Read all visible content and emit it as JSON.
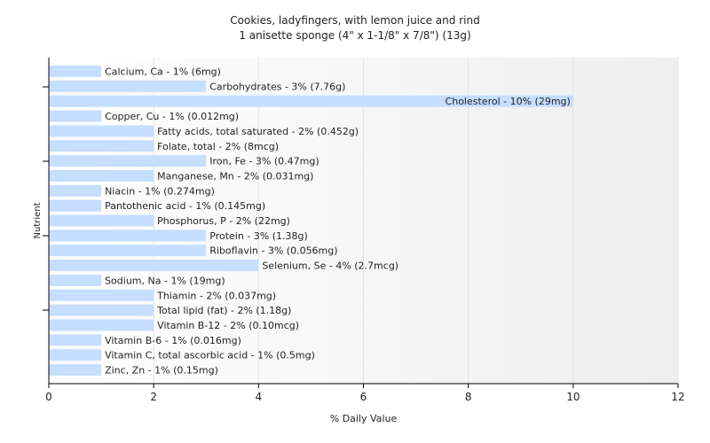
{
  "chart_data": {
    "type": "bar",
    "orientation": "horizontal",
    "title": "Cookies, ladyfingers, with lemon juice and rind",
    "subtitle": "1 anisette sponge (4\" x 1-1/8\" x 7/8\") (13g)",
    "xlabel": "% Daily Value",
    "ylabel": "Nutrient",
    "xlim": [
      0,
      12
    ],
    "xticks": [
      0,
      2,
      4,
      6,
      8,
      10,
      12
    ],
    "bar_color": "#c6deff",
    "grid": false,
    "categories": [
      "Calcium, Ca",
      "Carbohydrates",
      "Cholesterol",
      "Copper, Cu",
      "Fatty acids, total saturated",
      "Folate, total",
      "Iron, Fe",
      "Manganese, Mn",
      "Niacin",
      "Pantothenic acid",
      "Phosphorus, P",
      "Protein",
      "Riboflavin",
      "Selenium, Se",
      "Sodium, Na",
      "Thiamin",
      "Total lipid (fat)",
      "Vitamin B-12",
      "Vitamin B-6",
      "Vitamin C, total ascorbic acid",
      "Zinc, Zn"
    ],
    "values": [
      1,
      3,
      10,
      1,
      2,
      2,
      3,
      2,
      1,
      1,
      2,
      3,
      3,
      4,
      1,
      2,
      2,
      2,
      1,
      1,
      1
    ],
    "labels": [
      "Calcium, Ca - 1% (6mg)",
      "Carbohydrates - 3% (7.76g)",
      "Cholesterol - 10% (29mg)",
      "Copper, Cu - 1% (0.012mg)",
      "Fatty acids, total saturated - 2% (0.452g)",
      "Folate, total - 2% (8mcg)",
      "Iron, Fe - 3% (0.47mg)",
      "Manganese, Mn - 2% (0.031mg)",
      "Niacin - 1% (0.274mg)",
      "Pantothenic acid - 1% (0.145mg)",
      "Phosphorus, P - 2% (22mg)",
      "Protein - 3% (1.38g)",
      "Riboflavin - 3% (0.056mg)",
      "Selenium, Se - 4% (2.7mcg)",
      "Sodium, Na - 1% (19mg)",
      "Thiamin - 2% (0.037mg)",
      "Total lipid (fat) - 2% (1.18g)",
      "Vitamin B-12 - 2% (0.10mcg)",
      "Vitamin B-6 - 1% (0.016mg)",
      "Vitamin C, total ascorbic acid - 1% (0.5mg)",
      "Zinc, Zn - 1% (0.15mg)"
    ]
  }
}
